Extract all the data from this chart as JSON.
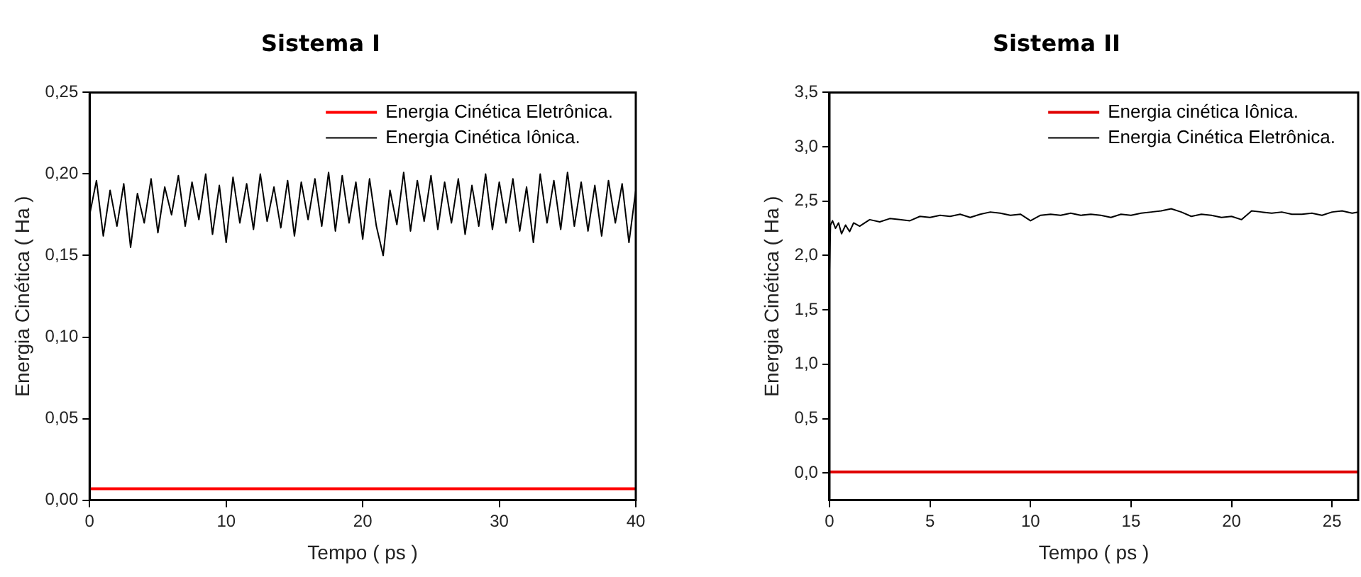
{
  "chart_data": [
    {
      "type": "line",
      "title": "Sistema I",
      "xlabel": "Tempo ( ps )",
      "ylabel": "Energia Cinética ( Ha )",
      "xlim": [
        0,
        40
      ],
      "xticks": [
        0,
        10,
        20,
        30,
        40
      ],
      "ylim": [
        0,
        0.25
      ],
      "yticks": [
        {
          "value": 0,
          "label": "0,00"
        },
        {
          "value": 0.05,
          "label": "0,05"
        },
        {
          "value": 0.1,
          "label": "0,10"
        },
        {
          "value": 0.15,
          "label": "0,15"
        },
        {
          "value": 0.2,
          "label": "0,20"
        },
        {
          "value": 0.25,
          "label": "0,25"
        }
      ],
      "grid": false,
      "legend": "top right",
      "marker": "none",
      "line_style": "solid",
      "series": [
        {
          "name": "Energia Cinética Eletrônica.",
          "color": "#ff0000",
          "x": [
            0,
            10,
            20,
            30,
            40
          ],
          "values": [
            0.007,
            0.007,
            0.007,
            0.007,
            0.007
          ]
        },
        {
          "name": "Energia Cinética Iônica.",
          "color": "#000000",
          "x": [
            0,
            0.5,
            1,
            1.5,
            2,
            2.5,
            3,
            3.5,
            4,
            4.5,
            5,
            5.5,
            6,
            6.5,
            7,
            7.5,
            8,
            8.5,
            9,
            9.5,
            10,
            10.5,
            11,
            11.5,
            12,
            12.5,
            13,
            13.5,
            14,
            14.5,
            15,
            15.5,
            16,
            16.5,
            17,
            17.5,
            18,
            18.5,
            19,
            19.5,
            20,
            20.5,
            21,
            21.5,
            22,
            22.5,
            23,
            23.5,
            24,
            24.5,
            25,
            25.5,
            26,
            26.5,
            27,
            27.5,
            28,
            28.5,
            29,
            29.5,
            30,
            30.5,
            31,
            31.5,
            32,
            32.5,
            33,
            33.5,
            34,
            34.5,
            35,
            35.5,
            36,
            36.5,
            37,
            37.5,
            38,
            38.5,
            39,
            39.5,
            40
          ],
          "values": [
            0.175,
            0.196,
            0.162,
            0.19,
            0.168,
            0.194,
            0.155,
            0.188,
            0.17,
            0.197,
            0.164,
            0.192,
            0.175,
            0.199,
            0.168,
            0.195,
            0.172,
            0.2,
            0.163,
            0.193,
            0.158,
            0.198,
            0.17,
            0.194,
            0.166,
            0.2,
            0.171,
            0.192,
            0.167,
            0.196,
            0.162,
            0.195,
            0.172,
            0.197,
            0.168,
            0.201,
            0.165,
            0.199,
            0.17,
            0.195,
            0.16,
            0.197,
            0.168,
            0.15,
            0.19,
            0.169,
            0.201,
            0.165,
            0.196,
            0.171,
            0.199,
            0.166,
            0.195,
            0.17,
            0.197,
            0.163,
            0.193,
            0.168,
            0.2,
            0.166,
            0.195,
            0.17,
            0.197,
            0.165,
            0.192,
            0.158,
            0.2,
            0.17,
            0.196,
            0.166,
            0.201,
            0.168,
            0.195,
            0.165,
            0.193,
            0.162,
            0.196,
            0.17,
            0.194,
            0.158,
            0.19
          ]
        }
      ]
    },
    {
      "type": "line",
      "title": "Sistema II",
      "xlabel": "Tempo ( ps )",
      "ylabel": "Energia Cinética ( Ha )",
      "xlim": [
        0,
        26.3
      ],
      "xticks": [
        0,
        5,
        10,
        15,
        20,
        25
      ],
      "ylim": [
        -0.25,
        3.5
      ],
      "yticks": [
        {
          "value": 0,
          "label": "0,0"
        },
        {
          "value": 0.5,
          "label": "0,5"
        },
        {
          "value": 1,
          "label": "1,0"
        },
        {
          "value": 1.5,
          "label": "1,5"
        },
        {
          "value": 2,
          "label": "2,0"
        },
        {
          "value": 2.5,
          "label": "2,5"
        },
        {
          "value": 3,
          "label": "3,0"
        },
        {
          "value": 3.5,
          "label": "3,5"
        }
      ],
      "grid": false,
      "legend": "top right",
      "marker": "none",
      "line_style": "solid",
      "series": [
        {
          "name": "Energia cinética Iônica.",
          "color": "#e00000",
          "x": [
            0,
            5,
            10,
            15,
            20,
            26.3
          ],
          "values": [
            0.01,
            0.01,
            0.01,
            0.01,
            0.01,
            0.01
          ]
        },
        {
          "name": "Energia Cinética Eletrônica.",
          "color": "#000000",
          "x": [
            0,
            0.05,
            0.15,
            0.3,
            0.45,
            0.6,
            0.8,
            1,
            1.2,
            1.5,
            2,
            2.5,
            3,
            3.5,
            4,
            4.5,
            5,
            5.5,
            6,
            6.5,
            7,
            7.5,
            8,
            8.5,
            9,
            9.5,
            10,
            10.5,
            11,
            11.5,
            12,
            12.5,
            13,
            13.5,
            14,
            14.5,
            15,
            15.5,
            16,
            16.5,
            17,
            17.5,
            18,
            18.5,
            19,
            19.5,
            20,
            20.5,
            21,
            21.5,
            22,
            22.5,
            23,
            23.5,
            24,
            24.5,
            25,
            25.5,
            26,
            26.3
          ],
          "values": [
            1.85,
            2.28,
            2.32,
            2.25,
            2.3,
            2.2,
            2.28,
            2.22,
            2.3,
            2.27,
            2.33,
            2.31,
            2.34,
            2.33,
            2.32,
            2.36,
            2.35,
            2.37,
            2.36,
            2.38,
            2.35,
            2.38,
            2.4,
            2.39,
            2.37,
            2.38,
            2.32,
            2.37,
            2.38,
            2.37,
            2.39,
            2.37,
            2.38,
            2.37,
            2.35,
            2.38,
            2.37,
            2.39,
            2.4,
            2.41,
            2.43,
            2.4,
            2.36,
            2.38,
            2.37,
            2.35,
            2.36,
            2.33,
            2.41,
            2.4,
            2.39,
            2.4,
            2.38,
            2.38,
            2.39,
            2.37,
            2.4,
            2.41,
            2.39,
            2.4
          ]
        }
      ]
    }
  ]
}
